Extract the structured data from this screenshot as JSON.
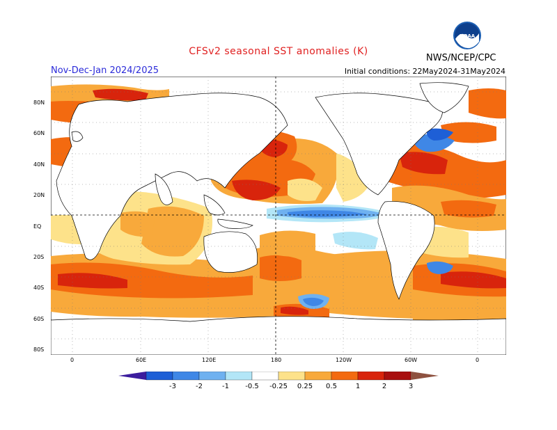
{
  "header": {
    "title": "CFSv2 seasonal SST anomalies (K)",
    "period": "Nov-Dec-Jan 2024/2025",
    "initial_conditions": "Initial conditions: 22May2024-31May2024",
    "agency": "NWS/NCEP/CPC",
    "logo_text": "NOAA"
  },
  "colors": {
    "title": "#e02020",
    "period": "#2b2bd9",
    "land": "#ffffff",
    "neutral_sea": "#ffffff"
  },
  "map": {
    "lat_labels": [
      "80N",
      "60N",
      "40N",
      "20N",
      "EQ",
      "20S",
      "40S",
      "60S",
      "80S"
    ],
    "lon_labels": [
      "0",
      "60E",
      "120E",
      "180",
      "120W",
      "60W",
      "0"
    ]
  },
  "legend": {
    "levels": [
      "-3",
      "-2",
      "-1",
      "-0.5",
      "-0.25",
      "0.25",
      "0.5",
      "1",
      "2",
      "3"
    ],
    "colors": [
      "#3c1d9e",
      "#1e5fd6",
      "#3f87e6",
      "#6fb1f0",
      "#b3e6f7",
      "#ffffff",
      "#fde28a",
      "#f8a93b",
      "#f36a10",
      "#d8240c",
      "#a80f0f",
      "#8e5240"
    ]
  }
}
